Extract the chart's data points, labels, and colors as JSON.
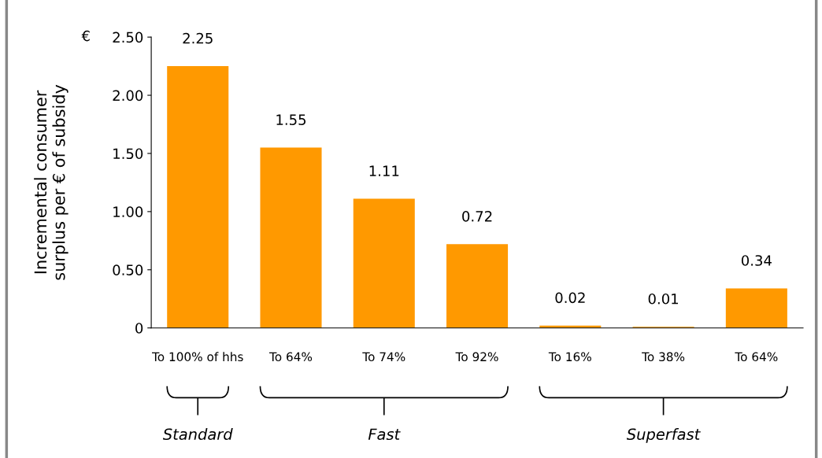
{
  "chart_data": {
    "type": "bar",
    "ylabel": "Incremental consumer\nsurplus per € of subsidy",
    "categories": [
      "To 100% of hhs",
      "To 64%",
      "To 74%",
      "To 92%",
      "To 16%",
      "To 38%",
      "To 64%"
    ],
    "values": [
      2.25,
      1.55,
      1.11,
      0.72,
      0.02,
      0.01,
      0.34
    ],
    "color": "#ff9900",
    "ylim": [
      0,
      2.5
    ],
    "yticks": [
      0,
      {
        "value": 0.5,
        "label": "0.50"
      },
      {
        "value": 1,
        "label": "1.00"
      },
      {
        "value": 1.5,
        "label": "1.50"
      },
      {
        "value": 2,
        "label": "2.00"
      },
      {
        "value": 2.5,
        "label": "2.50"
      }
    ],
    "data_labels": true,
    "grid": false,
    "legend": false,
    "annotations": [
      "€",
      "Standard",
      "Fast",
      "Superfast"
    ]
  }
}
